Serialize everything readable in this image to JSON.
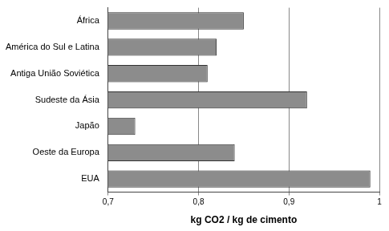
{
  "chart_data": {
    "type": "bar",
    "orientation": "horizontal",
    "x_label": "kg CO2 / kg de cimento",
    "categories": [
      "África",
      "América do Sul e Latina",
      "Antiga União Soviética",
      "Sudeste da Ásia",
      "Japão",
      "Oeste da Europa",
      "EUA"
    ],
    "values": [
      0.85,
      0.82,
      0.81,
      0.92,
      0.73,
      0.84,
      0.99
    ],
    "color": "#8c8c8c",
    "xlim": [
      0.7,
      1
    ],
    "xticks": [
      {
        "value": 0.7,
        "label": "0,7"
      },
      {
        "value": 0.8,
        "label": "0,8"
      },
      {
        "value": 0.9,
        "label": "0,9"
      },
      1
    ],
    "grid": true
  }
}
